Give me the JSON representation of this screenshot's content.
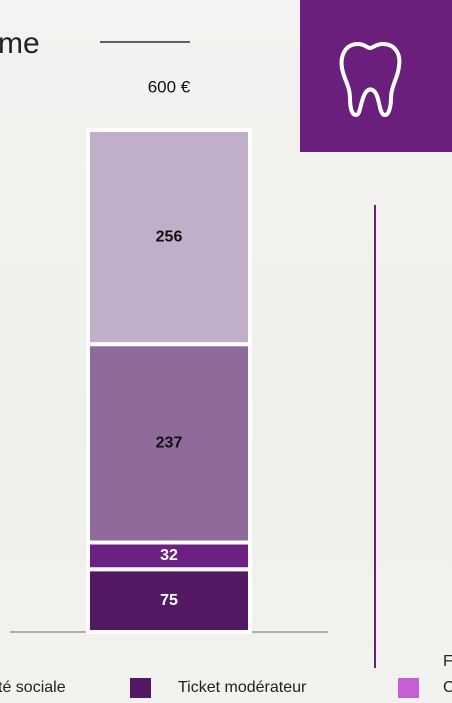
{
  "chart_data": {
    "type": "stacked_bar",
    "title": "me",
    "total": {
      "value": 600,
      "label": "600 €"
    },
    "ylim": [
      0,
      600
    ],
    "series": [
      {
        "color": "#531a63",
        "values": [
          75
        ]
      },
      {
        "color": "#6c2182",
        "values": [
          32
        ]
      },
      {
        "color": "#8f6b9c",
        "values": [
          237
        ]
      },
      {
        "color": "#c1afc9",
        "values": [
          256
        ]
      }
    ],
    "legend": [
      {
        "label": "té sociale"
      },
      {
        "label": "Ticket modérateur",
        "color": "#531a63"
      },
      {
        "label": "F"
      },
      {
        "label": "C",
        "color": "#c45fd6"
      }
    ]
  }
}
